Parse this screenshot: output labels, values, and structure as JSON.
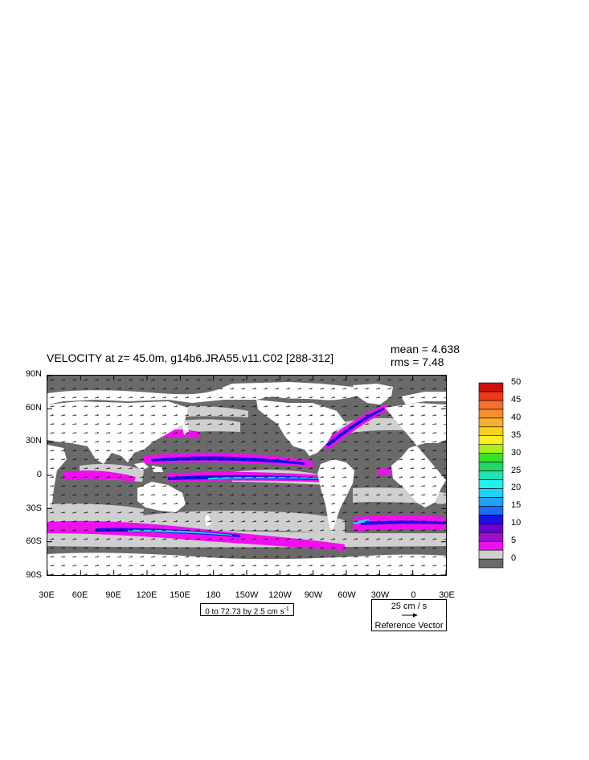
{
  "header": {
    "title": "VELOCITY at z=  45.0m, g14b6.JRA55.v11.C02 [288-312]",
    "mean_text": "mean = 4.638",
    "rms_text": "rms = 7.48"
  },
  "chart_data": {
    "type": "heatmap",
    "title": "VELOCITY at z=  45.0m, g14b6.JRA55.v11.C02 [288-312]",
    "mean": 4.638,
    "rms": 7.48,
    "x_ticks": [
      "30E",
      "60E",
      "90E",
      "120E",
      "150E",
      "180",
      "150W",
      "120W",
      "90W",
      "60W",
      "30W",
      "0",
      "30E"
    ],
    "x_values": [
      30,
      60,
      90,
      120,
      150,
      180,
      210,
      240,
      270,
      300,
      330,
      360,
      390
    ],
    "xlim": [
      30,
      390
    ],
    "y_ticks": [
      "90N",
      "60N",
      "30N",
      "0",
      "30S",
      "60S",
      "90S"
    ],
    "y_values": [
      90,
      60,
      30,
      0,
      -30,
      -60,
      -90
    ],
    "ylim": [
      -90,
      90
    ],
    "contour_info": "0 to 72.73 by 2.5 cm s",
    "contour_units_exponent": "-1",
    "reference_vector": {
      "magnitude_label": "25 cm / s",
      "label": "Reference Vector"
    },
    "colorbar": {
      "levels": [
        0,
        2.5,
        5,
        7.5,
        10,
        12.5,
        15,
        17.5,
        20,
        22.5,
        25,
        27.5,
        30,
        32.5,
        35,
        37.5,
        40,
        42.5,
        45,
        47.5,
        50
      ],
      "colors": [
        "#6a6a6a",
        "#cfcfcf",
        "#ee10ee",
        "#9a10cc",
        "#6a00d0",
        "#1a10e6",
        "#1c6cf6",
        "#20a2f6",
        "#20d2f4",
        "#20f0f0",
        "#20e4b4",
        "#20d868",
        "#38e028",
        "#a8f01c",
        "#f6f01c",
        "#f6d21c",
        "#f6b02c",
        "#f68e2c",
        "#f6702c",
        "#ee3a1c",
        "#d0100c"
      ],
      "tick_labels": [
        "0",
        "5",
        "10",
        "15",
        "20",
        "25",
        "30",
        "35",
        "40",
        "45",
        "50"
      ],
      "tick_values": [
        0,
        5,
        10,
        15,
        20,
        25,
        30,
        35,
        40,
        45,
        50
      ]
    },
    "land_color": "#ffffff",
    "legend_position": "right"
  }
}
